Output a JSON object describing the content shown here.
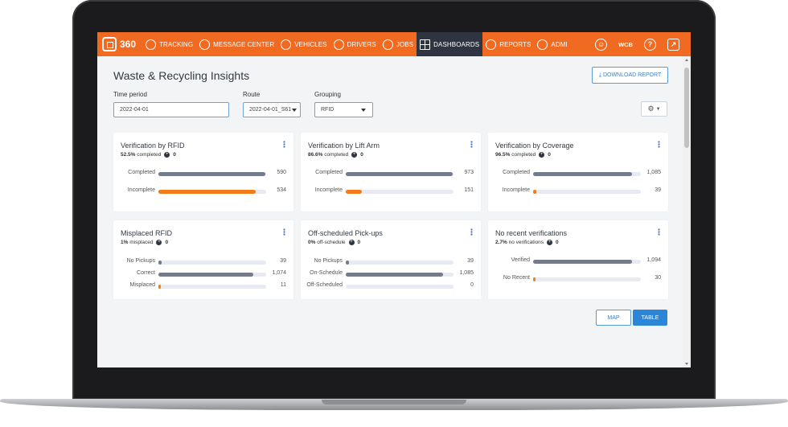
{
  "nav": {
    "brand": "360",
    "items": [
      {
        "label": "TRACKING",
        "icon": "tracking-icon"
      },
      {
        "label": "MESSAGE CENTER",
        "icon": "chat-icon"
      },
      {
        "label": "VEHICLES",
        "icon": "truck-icon"
      },
      {
        "label": "DRIVERS",
        "icon": "driver-icon"
      },
      {
        "label": "JOBS",
        "icon": "jobs-icon"
      },
      {
        "label": "DASHBOARDS",
        "icon": "dashboard-grid-icon",
        "active": true
      },
      {
        "label": "REPORTS",
        "icon": "reports-chart-icon"
      },
      {
        "label": "ADMI",
        "icon": "admin-gear-icon"
      }
    ],
    "user_initials": "WCB",
    "help_glyph": "?",
    "accent_color": "#f06a22",
    "active_color": "#2e3440"
  },
  "page": {
    "title": "Waste & Recycling Insights",
    "download_label": "DOWNLOAD REPORT"
  },
  "filters": {
    "time_period": {
      "label": "Time period",
      "value": "2022-04-01"
    },
    "route": {
      "label": "Route",
      "value": "2022-04-01_S61"
    },
    "grouping": {
      "label": "Grouping",
      "value": "RFID"
    }
  },
  "cards": [
    {
      "title": "Verification by RFID",
      "sub_pct": "52.5%",
      "sub_text": "completed",
      "sub_count": "0",
      "rows": [
        {
          "label": "Completed",
          "value": "590",
          "fraction": 0.99,
          "color": "#747b8e"
        },
        {
          "label": "Incomplete",
          "value": "534",
          "fraction": 0.9,
          "color": "#f47b1a"
        }
      ]
    },
    {
      "title": "Verification by Lift Arm",
      "sub_pct": "86.6%",
      "sub_text": "completed",
      "sub_count": "0",
      "rows": [
        {
          "label": "Completed",
          "value": "973",
          "fraction": 0.99,
          "color": "#747b8e"
        },
        {
          "label": "Incomplete",
          "value": "151",
          "fraction": 0.15,
          "color": "#f47b1a"
        }
      ]
    },
    {
      "title": "Verification by Coverage",
      "sub_pct": "96.5%",
      "sub_text": "completed",
      "sub_count": "0",
      "rows": [
        {
          "label": "Completed",
          "value": "1,085",
          "fraction": 0.92,
          "color": "#747b8e"
        },
        {
          "label": "Incomplete",
          "value": "39",
          "fraction": 0.03,
          "color": "#f47b1a"
        }
      ]
    },
    {
      "title": "Misplaced RFID",
      "sub_pct": "1%",
      "sub_text": "misplaced",
      "sub_count": "0",
      "rows": [
        {
          "label": "No Pickups",
          "value": "39",
          "fraction": 0.03,
          "color": "#747b8e"
        },
        {
          "label": "Correct",
          "value": "1,074",
          "fraction": 0.88,
          "color": "#747b8e"
        },
        {
          "label": "Misplaced",
          "value": "11",
          "fraction": 0.01,
          "color": "#f47b1a"
        }
      ]
    },
    {
      "title": "Off-scheduled Pick-ups",
      "sub_pct": "0%",
      "sub_text": "off-schedule",
      "sub_count": "0",
      "rows": [
        {
          "label": "No Pickups",
          "value": "39",
          "fraction": 0.03,
          "color": "#747b8e"
        },
        {
          "label": "On-Schedule",
          "value": "1,085",
          "fraction": 0.9,
          "color": "#747b8e"
        },
        {
          "label": "Off-Scheduled",
          "value": "0",
          "fraction": 0.0,
          "color": "#f47b1a"
        }
      ]
    },
    {
      "title": "No recent verifications",
      "sub_pct": "2.7%",
      "sub_text": "no verifications",
      "sub_count": "0",
      "rows": [
        {
          "label": "Verified",
          "value": "1,094",
          "fraction": 0.92,
          "color": "#747b8e"
        },
        {
          "label": "No Recent",
          "value": "30",
          "fraction": 0.02,
          "color": "#f47b1a"
        }
      ]
    }
  ],
  "view_toggle": {
    "map_label": "MAP",
    "table_label": "TABLE",
    "active": "TABLE",
    "active_color": "#2b86d8"
  }
}
